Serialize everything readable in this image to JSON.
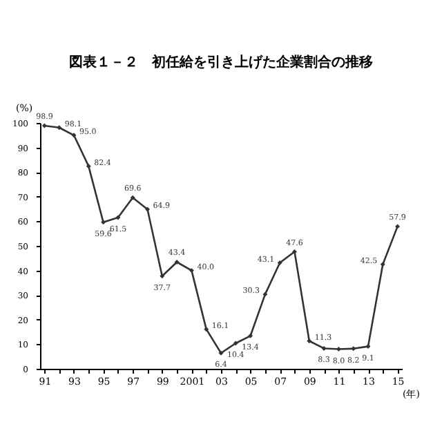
{
  "chart_data": {
    "type": "line",
    "title": "図表１－２　初任給を引き上げた企業割合の推移",
    "xlabel": "(年)",
    "ylabel": "(%)",
    "categories": [
      "91",
      null,
      "93",
      null,
      "95",
      null,
      "97",
      null,
      "99",
      null,
      "2001",
      null,
      "03",
      null,
      "05",
      null,
      "07",
      null,
      "09",
      null,
      "11",
      null,
      "13",
      null,
      "15"
    ],
    "series": [
      {
        "color": "#333333",
        "values": [
          98.9,
          98.1,
          95.0,
          82.4,
          59.6,
          61.5,
          69.6,
          64.9,
          37.7,
          43.4,
          40.0,
          16.1,
          6.4,
          10.4,
          13.4,
          30.3,
          43.1,
          47.6,
          11.3,
          8.3,
          8.0,
          8.2,
          9.1,
          42.5,
          57.9
        ],
        "value_labels": [
          "98.9",
          "98.1",
          "95.0",
          "82.4",
          "59.6",
          "61.5",
          "69.6",
          "64.9",
          "37.7",
          "43.4",
          "40.0",
          "16.1",
          "6.4",
          "10.4",
          "13.4",
          "30.3",
          "43.1",
          "47.6",
          "11.3",
          "8.3",
          "8.0",
          "8.2",
          "9.1",
          "42.5",
          "57.9"
        ]
      }
    ],
    "ylim": [
      0,
      100
    ],
    "yticks": [
      0,
      10,
      20,
      30,
      40,
      50,
      60,
      70,
      80,
      90,
      100
    ],
    "marker": "diamond",
    "line_style": "solid",
    "grid": false,
    "legend": false
  }
}
